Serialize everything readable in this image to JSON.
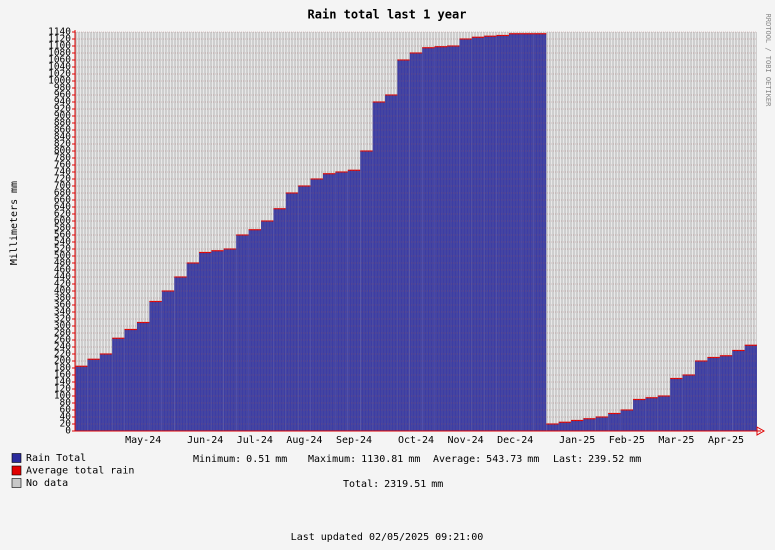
{
  "chart_data": {
    "type": "bar",
    "title": "Rain total last 1 year",
    "y_label": "Millimeters",
    "y_unit": "mm",
    "watermark": "RRDTOOL / TOBI OETIKER",
    "categories": [
      null,
      null,
      null,
      null,
      null,
      "May-24",
      null,
      null,
      null,
      null,
      "Jun-24",
      null,
      null,
      null,
      "Jul-24",
      null,
      null,
      null,
      "Aug-24",
      null,
      null,
      null,
      "Sep-24",
      null,
      null,
      null,
      null,
      "Oct-24",
      null,
      null,
      null,
      "Nov-24",
      null,
      null,
      null,
      "Dec-24",
      null,
      null,
      null,
      null,
      "Jan-25",
      null,
      null,
      null,
      "Feb-25",
      null,
      null,
      null,
      "Mar-25",
      null,
      null,
      null,
      "Apr-25",
      null,
      null
    ],
    "series": [
      {
        "name": "Rain Total",
        "color": "#2a2a9c",
        "values": [
          185,
          205,
          220,
          265,
          290,
          310,
          370,
          400,
          440,
          480,
          510,
          515,
          520,
          560,
          575,
          600,
          635,
          680,
          700,
          720,
          735,
          740,
          745,
          800,
          940,
          960,
          1060,
          1080,
          1095,
          1098,
          1100,
          1120,
          1125,
          1128,
          1130,
          1135,
          1135,
          1135,
          20,
          25,
          30,
          35,
          40,
          50,
          60,
          90,
          95,
          100,
          150,
          160,
          200,
          210,
          215,
          230,
          245
        ]
      }
    ],
    "legend": [
      {
        "name": "Rain Total",
        "color": "#2a2a9c"
      },
      {
        "name": "Average total rain",
        "color": "#e00000"
      },
      {
        "name": "No data",
        "color": "#c8c8c8"
      }
    ],
    "stats": [
      {
        "label": "Minimum:",
        "value": 0.51,
        "unit": "mm"
      },
      {
        "label": "Maximum:",
        "value": 1130.81,
        "unit": "mm"
      },
      {
        "label": "Average:",
        "value": 543.73,
        "unit": "mm"
      },
      {
        "label": "Last:",
        "value": 239.52,
        "unit": "mm"
      }
    ],
    "total": {
      "label": "Total:",
      "value": 2319.51,
      "unit": "mm"
    },
    "footer": "Last updated 02/05/2025 09:21:00",
    "ylim": [
      0,
      1140
    ],
    "yticks": [
      0,
      20,
      40,
      60,
      80,
      100,
      120,
      140,
      160,
      180,
      200,
      220,
      240,
      260,
      280,
      300,
      320,
      340,
      360,
      380,
      400,
      420,
      440,
      460,
      480,
      500,
      520,
      540,
      560,
      580,
      600,
      620,
      640,
      660,
      680,
      700,
      720,
      740,
      760,
      780,
      800,
      820,
      840,
      860,
      880,
      900,
      920,
      940,
      960,
      980,
      1000,
      1020,
      1040,
      1060,
      1080,
      1100,
      1120,
      1140
    ],
    "grid": true
  }
}
